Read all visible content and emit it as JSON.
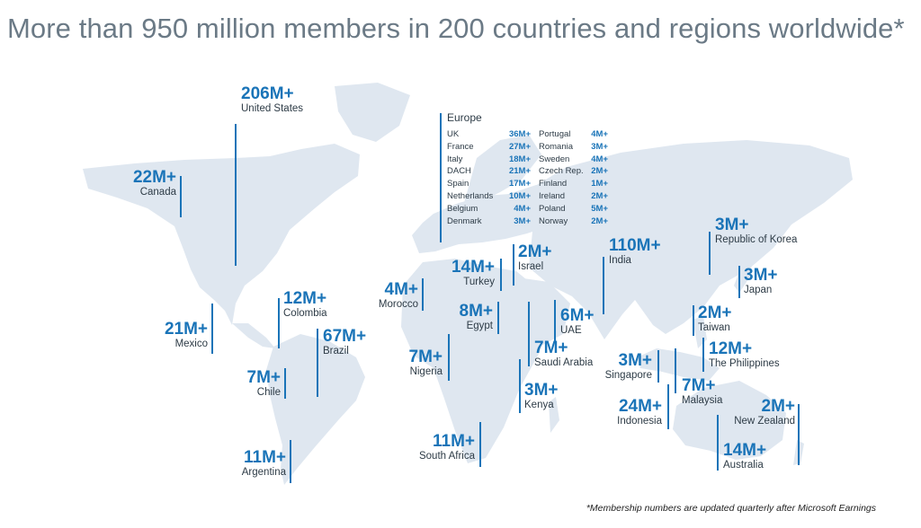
{
  "title": "More than 950 million members in 200 countries and regions worldwide*",
  "footnote": "*Membership numbers are updated quarterly after Microsoft Earnings",
  "colors": {
    "accent": "#1a74b8",
    "land": "#dfe7f0",
    "title": "#6b7a86"
  },
  "regions": {
    "united_states": {
      "value": "206M+",
      "name": "United States"
    },
    "canada": {
      "value": "22M+",
      "name": "Canada"
    },
    "mexico": {
      "value": "21M+",
      "name": "Mexico"
    },
    "colombia": {
      "value": "12M+",
      "name": "Colombia"
    },
    "brazil": {
      "value": "67M+",
      "name": "Brazil"
    },
    "chile": {
      "value": "7M+",
      "name": "Chile"
    },
    "argentina": {
      "value": "11M+",
      "name": "Argentina"
    },
    "morocco": {
      "value": "4M+",
      "name": "Morocco"
    },
    "turkey": {
      "value": "14M+",
      "name": "Turkey"
    },
    "israel": {
      "value": "2M+",
      "name": "Israel"
    },
    "egypt": {
      "value": "8M+",
      "name": "Egypt"
    },
    "nigeria": {
      "value": "7M+",
      "name": "Nigeria"
    },
    "uae": {
      "value": "6M+",
      "name": "UAE"
    },
    "saudi_arabia": {
      "value": "7M+",
      "name": "Saudi Arabia"
    },
    "kenya": {
      "value": "3M+",
      "name": "Kenya"
    },
    "south_africa": {
      "value": "11M+",
      "name": "South Africa"
    },
    "india": {
      "value": "110M+",
      "name": "India"
    },
    "korea": {
      "value": "3M+",
      "name": "Republic of Korea"
    },
    "japan": {
      "value": "3M+",
      "name": "Japan"
    },
    "taiwan": {
      "value": "2M+",
      "name": "Taiwan"
    },
    "philippines": {
      "value": "12M+",
      "name": "The Philippines"
    },
    "singapore": {
      "value": "3M+",
      "name": "Singapore"
    },
    "malaysia": {
      "value": "7M+",
      "name": "Malaysia"
    },
    "indonesia": {
      "value": "24M+",
      "name": "Indonesia"
    },
    "new_zealand": {
      "value": "2M+",
      "name": "New Zealand"
    },
    "australia": {
      "value": "14M+",
      "name": "Australia"
    }
  },
  "europe": {
    "heading": "Europe",
    "left": [
      {
        "name": "UK",
        "value": "36M+"
      },
      {
        "name": "France",
        "value": "27M+"
      },
      {
        "name": "Italy",
        "value": "18M+"
      },
      {
        "name": "DACH",
        "value": "21M+"
      },
      {
        "name": "Spain",
        "value": "17M+"
      },
      {
        "name": "Netherlands",
        "value": "10M+"
      },
      {
        "name": "Belgium",
        "value": "4M+"
      },
      {
        "name": "Denmark",
        "value": "3M+"
      }
    ],
    "right": [
      {
        "name": "Portugal",
        "value": "4M+"
      },
      {
        "name": "Romania",
        "value": "3M+"
      },
      {
        "name": "Sweden",
        "value": "4M+"
      },
      {
        "name": "Czech Rep.",
        "value": "2M+"
      },
      {
        "name": "Finland",
        "value": "1M+"
      },
      {
        "name": "Ireland",
        "value": "2M+"
      },
      {
        "name": "Poland",
        "value": "5M+"
      },
      {
        "name": "Norway",
        "value": "2M+"
      }
    ]
  }
}
